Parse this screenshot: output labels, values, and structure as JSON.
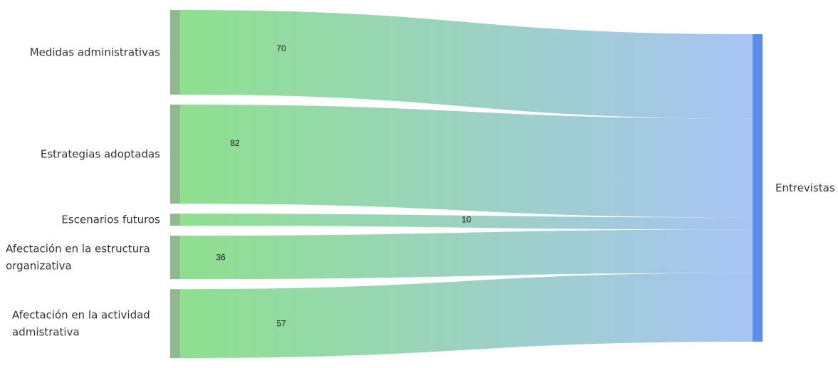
{
  "chart_data": {
    "type": "sankey",
    "title": "",
    "sources": [
      {
        "label_lines": [
          "Medidas administrativas"
        ],
        "value": 70
      },
      {
        "label_lines": [
          "Estrategias adoptadas"
        ],
        "value": 82
      },
      {
        "label_lines": [
          "Escenarios futuros"
        ],
        "value": 10
      },
      {
        "label_lines": [
          "Afectación en la estructura",
          "organizativa"
        ],
        "value": 36
      },
      {
        "label_lines": [
          "Afectación en la actividad",
          "admistrativa"
        ],
        "value": 57
      }
    ],
    "target": {
      "label": "Entrevistas"
    },
    "flows": [
      {
        "from": "Medidas administrativas",
        "to": "Entrevistas",
        "value": 70
      },
      {
        "from": "Estrategias adoptadas",
        "to": "Entrevistas",
        "value": 82
      },
      {
        "from": "Escenarios futuros",
        "to": "Entrevistas",
        "value": 10
      },
      {
        "from": "Afectación en la estructura organizativa",
        "to": "Entrevistas",
        "value": 36
      },
      {
        "from": "Afectación en la actividad admistrativa",
        "to": "Entrevistas",
        "value": 57
      }
    ],
    "colors": {
      "source_node": "#8fb98f",
      "target_node": "#5b8def",
      "link_start": "#8ee08e",
      "link_end": "#a8c4f4"
    }
  }
}
